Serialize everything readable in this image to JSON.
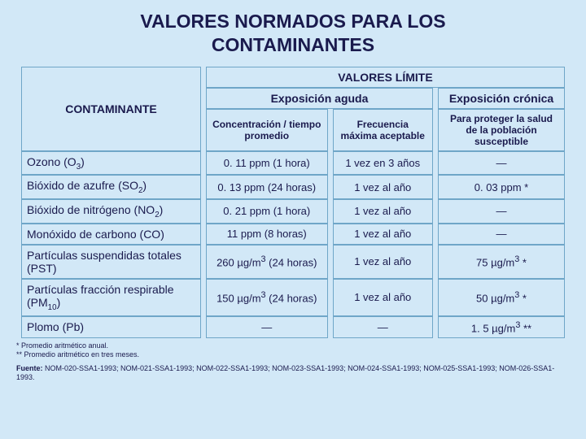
{
  "title_l1": "VALORES NORMADOS PARA LOS",
  "title_l2": "CONTAMINANTES",
  "headers": {
    "valores_limite": "VALORES LÍMITE",
    "contaminante": "CONTAMINANTE",
    "exp_aguda": "Exposición aguda",
    "exp_cronica": "Exposición crónica",
    "conc": "Concentración / tiempo promedio",
    "frec": "Frecuencia máxima aceptable",
    "para": "Para proteger  la salud de la población susceptible"
  },
  "rows": [
    {
      "name": "Ozono (O<sub>3</sub>)",
      "conc": "0. 11 ppm (1 hora)",
      "frec": "1 vez en 3 años",
      "cron": "—"
    },
    {
      "name": "Bióxido de azufre (SO<sub>2</sub>)",
      "conc": "0. 13 ppm (24 horas)",
      "frec": "1 vez al año",
      "cron": "0. 03 ppm *"
    },
    {
      "name": "Bióxido de nitrógeno (NO<sub>2</sub>)",
      "conc": "0. 21 ppm (1 hora)",
      "frec": "1 vez al año",
      "cron": "—"
    },
    {
      "name": "Monóxido de carbono (CO)",
      "conc": "11 ppm (8 horas)",
      "frec": "1 vez al año",
      "cron": "—"
    },
    {
      "name": "Partículas suspendidas totales (PST)",
      "conc": "260 µg/m<sup>3</sup> (24 horas)",
      "frec": "1 vez al año",
      "cron": "75 µg/m<sup>3</sup> *"
    },
    {
      "name": "Partículas fracción respirable (PM<sub>10</sub>)",
      "conc": "150 µg/m<sup>3</sup> (24 horas)",
      "frec": "1 vez al año",
      "cron": "50 µg/m<sup>3</sup> *"
    },
    {
      "name": "Plomo (Pb)",
      "conc": "—",
      "frec": "—",
      "cron": "1. 5 µg/m<sup>3</sup> **"
    }
  ],
  "footnotes": {
    "f1": "*   Promedio aritmético anual.",
    "f2": "**  Promedio aritmético en tres meses."
  },
  "source_label": "Fuente:",
  "source_text": "NOM-020-SSA1-1993; NOM-021-SSA1-1993; NOM-022-SSA1-1993; NOM-023-SSA1-1993; NOM-024-SSA1-1993; NOM-025-SSA1-1993; NOM-026-SSA1-1993."
}
